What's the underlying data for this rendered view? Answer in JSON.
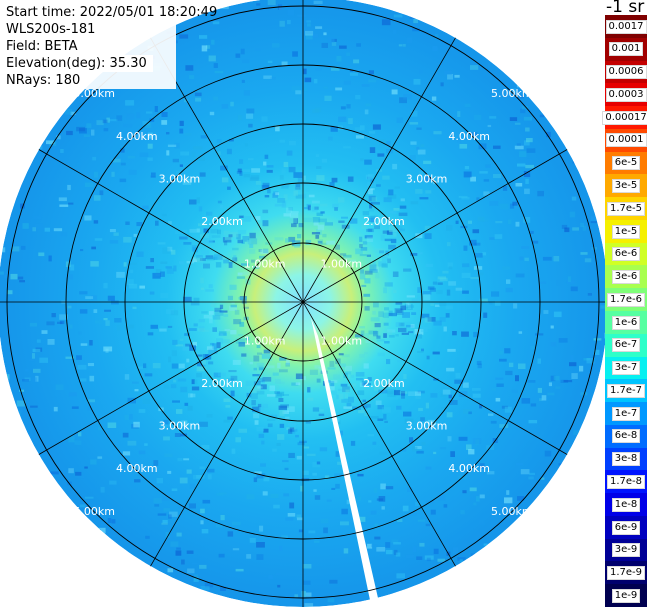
{
  "info": {
    "start_time": "Start time: 2022/05/01 18:20:49",
    "device": "WLS200s-181",
    "field": "Field: BETA",
    "elevation": "Elevation(deg): 35.30",
    "nrays": "NRays: 180"
  },
  "unit_title": "-1 sr",
  "range_labels": [
    "1.00km",
    "2.00km",
    "3.00km",
    "4.00km",
    "5.00km"
  ],
  "colorbar": {
    "labels": [
      "0.0017",
      "0.001",
      "0.0006",
      "0.0003",
      "0.00017",
      "0.0001",
      "6e-5",
      "3e-5",
      "1.7e-5",
      "1e-5",
      "6e-6",
      "3e-6",
      "1.7e-6",
      "1e-6",
      "6e-7",
      "3e-7",
      "1.7e-7",
      "1e-7",
      "6e-8",
      "3e-8",
      "1.7e-8",
      "1e-8",
      "6e-9",
      "3e-9",
      "1.7e-9",
      "1e-9"
    ],
    "colors": [
      "#7f0000",
      "#a10000",
      "#c40000",
      "#e60000",
      "#ff1800",
      "#ff4a00",
      "#ff7c00",
      "#ffa900",
      "#ffd400",
      "#f5f000",
      "#d0ff26",
      "#a8ff4f",
      "#7fff78",
      "#56ffa1",
      "#2effc9",
      "#07f0f0",
      "#00c4ff",
      "#0098ff",
      "#006cff",
      "#0040ff",
      "#0014ff",
      "#0000e8",
      "#0000bf",
      "#000096",
      "#00006d",
      "#000050"
    ]
  }
}
